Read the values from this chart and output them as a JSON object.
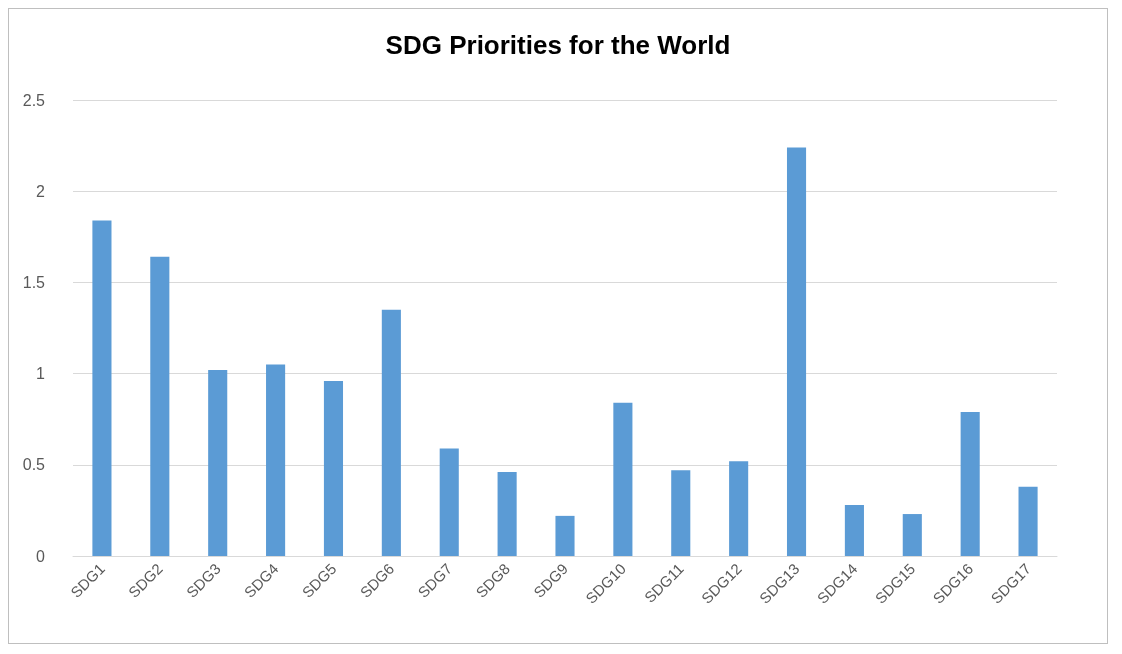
{
  "chart_data": {
    "type": "bar",
    "title": "SDG Priorities for the World",
    "categories": [
      "SDG1",
      "SDG2",
      "SDG3",
      "SDG4",
      "SDG5",
      "SDG6",
      "SDG7",
      "SDG8",
      "SDG9",
      "SDG10",
      "SDG11",
      "SDG12",
      "SDG13",
      "SDG14",
      "SDG15",
      "SDG16",
      "SDG17"
    ],
    "values": [
      1.84,
      1.64,
      1.02,
      1.05,
      0.96,
      1.35,
      0.59,
      0.46,
      0.22,
      0.84,
      0.47,
      0.52,
      2.24,
      0.28,
      0.23,
      0.79,
      0.38
    ],
    "color": "#5b9bd5",
    "ylim": [
      0,
      2.5
    ],
    "yticks": [
      0,
      0.5,
      1,
      1.5,
      2,
      2.5
    ],
    "grid": "y"
  }
}
